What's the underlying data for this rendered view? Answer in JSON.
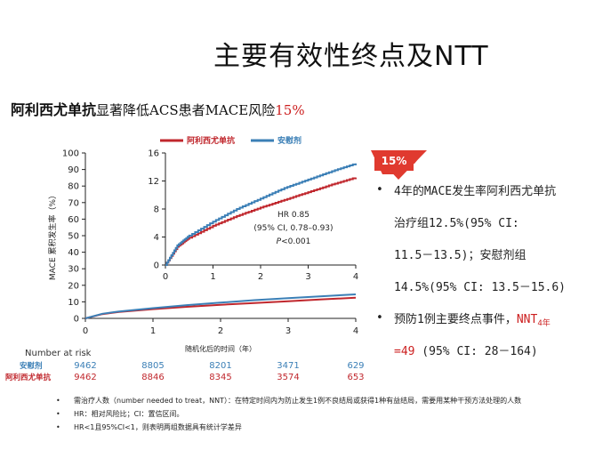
{
  "slide": {
    "title": "主要有效性终点及NTT",
    "subtitle_part1": "阿利西尤单抗",
    "subtitle_part2": "显著降低ACS患者MACE风险",
    "subtitle_part3": "15%",
    "badge": "15%",
    "bullets": [
      {
        "lines": [
          "4年的MACE发生率阿利西尤单抗",
          "治疗组12.5%(95% CI:",
          "11.5－13.5)；安慰剂组",
          "14.5%(95% CI: 13.5－15.6)"
        ]
      },
      {
        "line1_a": "预防1例主要终点事件，",
        "line1_b": "NNT",
        "line1_sub": "4年",
        "line2_a": "=49",
        "line2_b": " (95% CI: 28－164)"
      }
    ],
    "notes": [
      "需治疗人数（number needed to treat，NNT）：在特定时间内为防止发生1例不良结局或获得1种有益结局，需要用某种干预方法处理的人数",
      "HR：相对风险比；CI：置信区间。",
      "HR<1且95%CI<1，则表明两组数据具有统计学差异"
    ],
    "colors": {
      "alirocumab": "#c0272d",
      "placebo": "#3b7fb6",
      "badge": "#e03a2f"
    }
  },
  "chart_data": {
    "type": "line",
    "legend": [
      "阿利西尤单抗",
      "安慰剂"
    ],
    "ylabel": "MACE 累积发生率（%）",
    "xlabel": "随机化后的时间（年）",
    "xlim": [
      0,
      4
    ],
    "ylim": [
      0,
      100
    ],
    "xticks": [
      "0",
      "1",
      "2",
      "3",
      "4"
    ],
    "yticks": [
      "0",
      "10",
      "20",
      "30",
      "40",
      "50",
      "60",
      "70",
      "80",
      "90",
      "100"
    ],
    "series": [
      {
        "name": "阿利西尤单抗",
        "color": "#c0272d",
        "x": [
          0,
          0.25,
          0.5,
          1,
          1.5,
          2,
          2.5,
          3,
          3.5,
          4
        ],
        "y": [
          0,
          2.6,
          3.9,
          5.6,
          7.0,
          8.2,
          9.3,
          10.4,
          11.5,
          12.5
        ]
      },
      {
        "name": "安慰剂",
        "color": "#3b7fb6",
        "x": [
          0,
          0.25,
          0.5,
          1,
          1.5,
          2,
          2.5,
          3,
          3.5,
          4
        ],
        "y": [
          0,
          2.8,
          4.2,
          6.2,
          8.0,
          9.5,
          11.0,
          12.2,
          13.4,
          14.5
        ]
      }
    ],
    "inset": {
      "ylim": [
        0,
        16
      ],
      "xlim": [
        0,
        4
      ],
      "xticks": [
        "0",
        "1",
        "2",
        "3",
        "4"
      ],
      "yticks": [
        "0",
        "4",
        "8",
        "12",
        "16"
      ],
      "hr_lines": [
        "HR 0.85",
        "(95% CI, 0.78–0.93)",
        "P<0.001"
      ]
    },
    "risk_table": {
      "header": "Number at risk",
      "rows": [
        {
          "label": "安慰剂",
          "color": "#3b7fb6",
          "values": [
            "9462",
            "8805",
            "8201",
            "3471",
            "629"
          ]
        },
        {
          "label": "阿利西尤单抗",
          "color": "#c0272d",
          "values": [
            "9462",
            "8846",
            "8345",
            "3574",
            "653"
          ]
        }
      ]
    }
  }
}
